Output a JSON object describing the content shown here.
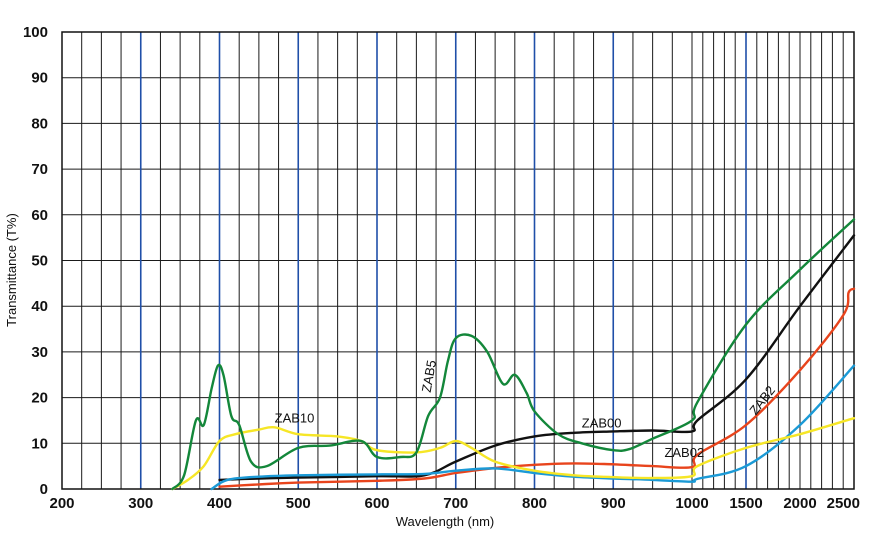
{
  "chart_data": {
    "type": "line",
    "xlabel": "Wavelength (nm)",
    "ylabel": "Transmittance (T%)",
    "ylim": [
      0,
      100
    ],
    "y_ticks": [
      "0",
      "10",
      "20",
      "30",
      "40",
      "50",
      "60",
      "70",
      "80",
      "90",
      "100"
    ],
    "x_ticks": [
      "200",
      "300",
      "400",
      "500",
      "600",
      "700",
      "800",
      "900",
      "1000",
      "1500",
      "2000",
      "2500"
    ],
    "grid": true,
    "series": [
      {
        "name": "ZAB00",
        "color": "#111111",
        "x": [
          400,
          450,
          500,
          600,
          660,
          700,
          750,
          800,
          850,
          900,
          950,
          1000,
          1050,
          1500,
          2000,
          2500
        ],
        "y": [
          2,
          2.3,
          2.5,
          2.8,
          3,
          6,
          9.5,
          11.5,
          12.3,
          12.6,
          12.8,
          12.6,
          15,
          24,
          40,
          55.5
        ]
      },
      {
        "name": "ZAB02",
        "color": "#e8441c",
        "x": [
          400,
          450,
          500,
          600,
          660,
          700,
          750,
          800,
          850,
          900,
          950,
          1000,
          1050,
          1500,
          2000,
          2400,
          2450,
          2500
        ],
        "y": [
          0.5,
          1,
          1.4,
          1.8,
          2.3,
          3.5,
          4.6,
          5.3,
          5.6,
          5.4,
          5,
          4.8,
          7.5,
          14,
          26,
          38,
          43,
          43.8
        ]
      },
      {
        "name": "ZAB2",
        "color": "#1b9ad6",
        "x": [
          390,
          410,
          450,
          500,
          600,
          660,
          700,
          750,
          800,
          850,
          900,
          950,
          1000,
          1050,
          1500,
          2000,
          2500
        ],
        "y": [
          0,
          2,
          2.7,
          3,
          3.2,
          3.3,
          4,
          4.5,
          3.5,
          2.7,
          2.3,
          2,
          1.6,
          2.2,
          5,
          14,
          27
        ]
      },
      {
        "name": "ZAB10",
        "color": "#f6e626",
        "x": [
          340,
          360,
          380,
          400,
          420,
          450,
          470,
          500,
          550,
          580,
          600,
          650,
          680,
          700,
          720,
          750,
          800,
          850,
          900,
          950,
          1000,
          1050,
          1500,
          2000,
          2500
        ],
        "y": [
          0,
          2,
          5,
          10.5,
          12,
          13,
          13.5,
          12,
          11.5,
          10.5,
          8.5,
          8,
          9,
          10.5,
          9,
          6,
          4,
          3,
          2.6,
          2.4,
          2.8,
          5,
          9,
          12,
          15.5
        ]
      },
      {
        "name": "ZAB5",
        "color": "#13873a",
        "x": [
          340,
          355,
          370,
          380,
          390,
          398,
          405,
          415,
          425,
          440,
          460,
          500,
          540,
          580,
          600,
          630,
          650,
          665,
          680,
          690,
          700,
          720,
          740,
          760,
          775,
          790,
          800,
          830,
          860,
          900,
          920,
          950,
          1000,
          1050,
          1500,
          2000,
          2500
        ],
        "y": [
          0,
          3,
          15,
          14,
          22,
          27,
          25,
          16,
          14,
          6,
          5,
          9,
          9.5,
          10.5,
          7,
          7,
          8,
          16,
          20,
          28,
          33,
          33.5,
          30,
          23,
          25,
          21,
          17,
          12,
          10,
          8.5,
          8.7,
          11,
          15,
          19,
          36,
          48,
          59
        ]
      }
    ],
    "annotations": [
      {
        "text": "ZAB10",
        "series": "ZAB10"
      },
      {
        "text": "ZAB5",
        "series": "ZAB5"
      },
      {
        "text": "ZAB00",
        "series": "ZAB00"
      },
      {
        "text": "ZAB02",
        "series": "ZAB02"
      },
      {
        "text": "ZAB2",
        "series": "ZAB2"
      }
    ]
  }
}
